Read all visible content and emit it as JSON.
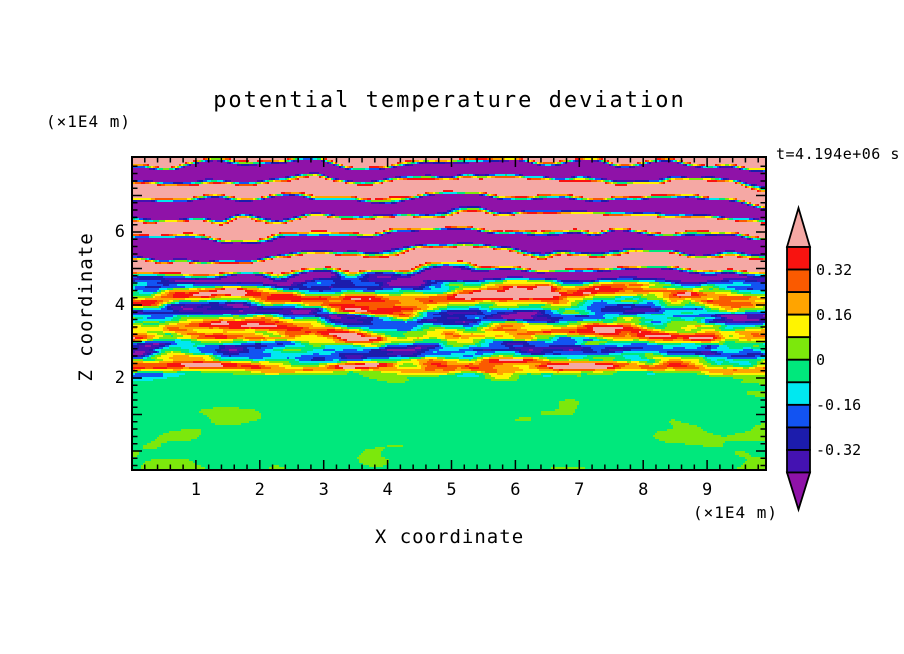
{
  "chart_data": {
    "type": "heatmap",
    "title": "potential temperature deviation",
    "time_label": "t=4.194e+06 s",
    "x_axis": {
      "label": "X coordinate",
      "units": "(×1E4 m)",
      "tick_labels": [
        "1",
        "2",
        "3",
        "4",
        "5",
        "6",
        "7",
        "8",
        "9"
      ],
      "tick_values": [
        1,
        2,
        3,
        4,
        5,
        6,
        7,
        8,
        9
      ],
      "minor_tick_interval": 0.2,
      "range": [
        0,
        9.95
      ]
    },
    "z_axis": {
      "label": "Z coordinate",
      "units": "(×1E4 m)",
      "tick_labels": [
        "6",
        "4",
        "2"
      ],
      "tick_values": [
        6,
        4,
        2
      ],
      "minor_tick_interval": 0.2,
      "range": [
        -0.55,
        8.08
      ]
    },
    "colorbar": {
      "tick_labels": [
        "0.32",
        "0.16",
        "0",
        "-0.16",
        "-0.32"
      ],
      "tick_values": [
        0.32,
        0.16,
        0,
        -0.16,
        -0.32
      ],
      "levels": [
        -0.4,
        -0.32,
        -0.24,
        -0.16,
        -0.08,
        0,
        0.08,
        0.16,
        0.24,
        0.32,
        0.4
      ],
      "palette_low_to_high": [
        "#8F12A8",
        "#4412B2",
        "#1C1CAC",
        "#1253F2",
        "#00E8F0",
        "#00E87C",
        "#7CE80C",
        "#FFF400",
        "#FFA400",
        "#FA5A00",
        "#F81310",
        "#F5A8A4"
      ],
      "arrow_ends": true
    },
    "field_description": "Stratified field: alternating horizontal wave stripes exceeding ±0.4 (pink / purple) above z≈4.5; a turbulent mixed band of red-orange-yellow and cyan-blue-navy streaks between z≈2 and z≈4.5; weak deviations within ±0.08 (yellow-green / spring-green blobs) below the wavy boundary at z≈2.",
    "field_model": {
      "seed": 11,
      "x_span": 9.95,
      "z_top": 8.08,
      "z_span": 8.63,
      "stripe_frequency": 1.02,
      "regions": {
        "upper": {
          "blend_start": 4.55,
          "blend_end": 5.15,
          "wave_amplitude": 1.15,
          "streak_amplitude": 0.06
        },
        "middle": {
          "wave_amplitude": 0.3,
          "streak_amplitude": 0.34,
          "fine_amplitude": 0.12
        },
        "lower": {
          "blend_start": 1.95,
          "blend_end": 2.3,
          "mean": -0.015,
          "blob_amplitude": 0.06,
          "fine_amplitude": 0.05,
          "boundary_waviness": 0.28
        }
      }
    }
  }
}
